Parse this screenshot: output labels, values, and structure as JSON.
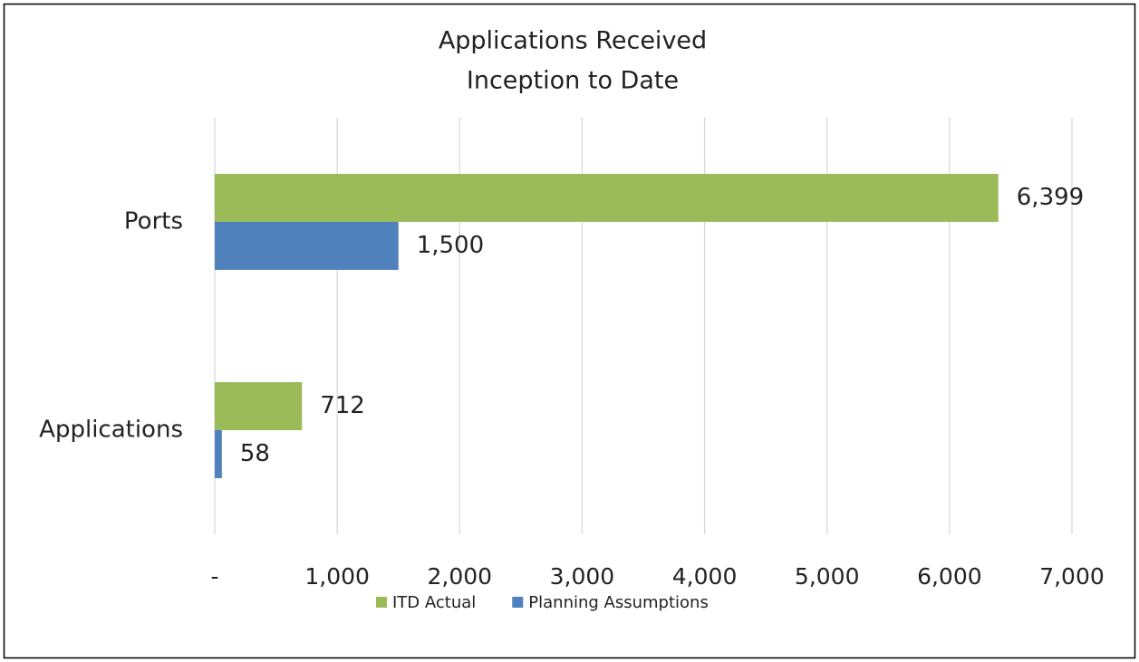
{
  "chart_data": {
    "type": "hbar",
    "title": "Applications Received",
    "subtitle": "Inception to Date",
    "categories": [
      "Ports",
      "Applications"
    ],
    "series": [
      {
        "name": "ITD Actual",
        "color": "#9bbb59",
        "values": [
          6399,
          712
        ],
        "value_labels": [
          "6,399",
          "712"
        ]
      },
      {
        "name": "Planning Assumptions",
        "color": "#4f81bd",
        "values": [
          1500,
          58
        ],
        "value_labels": [
          "1,500",
          "58"
        ]
      }
    ],
    "xlim": [
      0,
      7000
    ],
    "xticks": [
      {
        "value": 0,
        "label": "-"
      },
      {
        "value": 1000,
        "label": "1,000"
      },
      {
        "value": 2000,
        "label": "2,000"
      },
      {
        "value": 3000,
        "label": "3,000"
      },
      {
        "value": 4000,
        "label": "4,000"
      },
      {
        "value": 5000,
        "label": "5,000"
      },
      {
        "value": 6000,
        "label": "6,000"
      },
      {
        "value": 7000,
        "label": "7,000"
      }
    ],
    "grid": true,
    "legend": "bottom"
  }
}
